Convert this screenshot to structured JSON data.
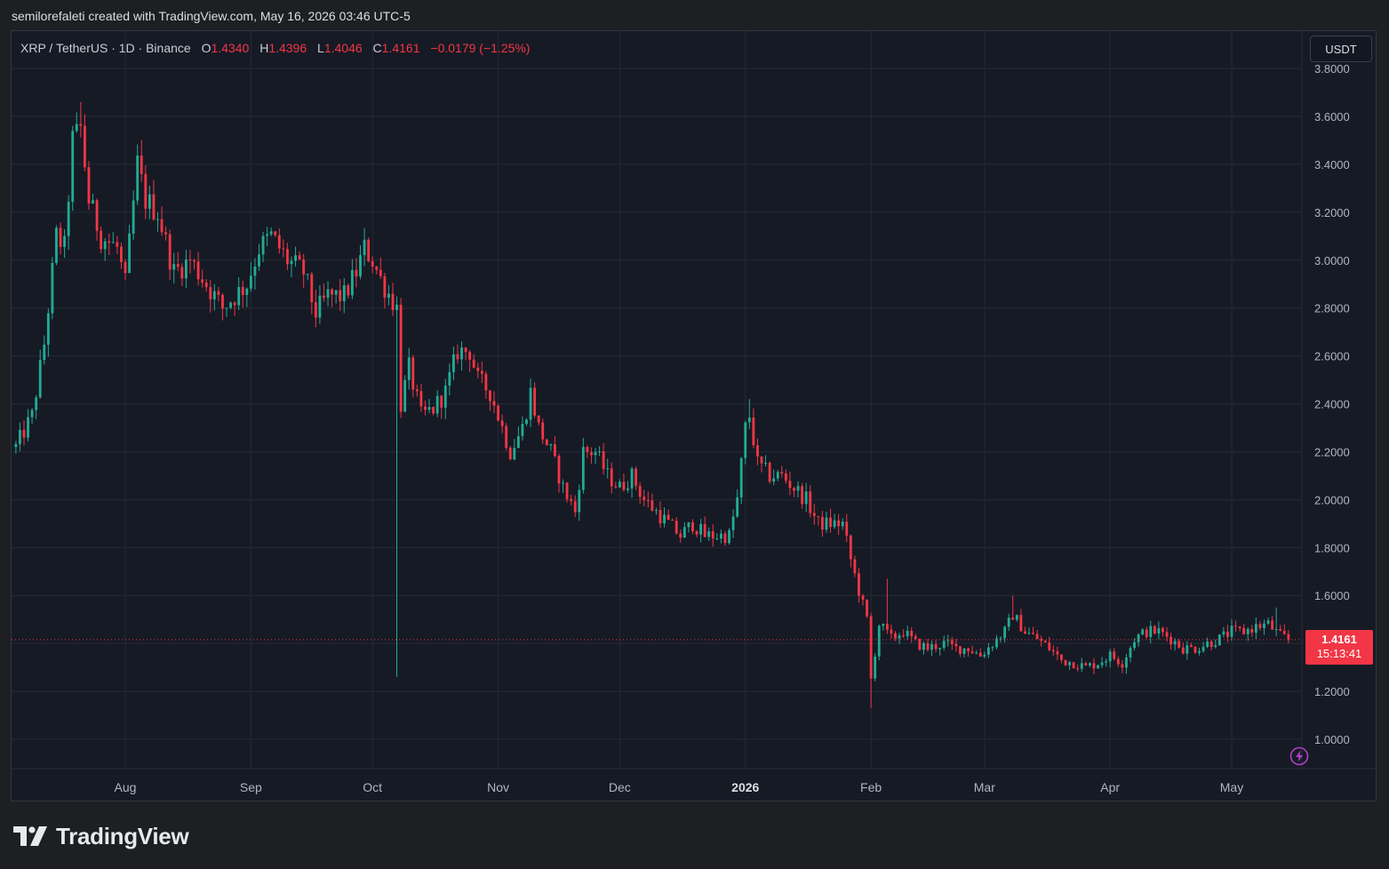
{
  "header": {
    "text": "semilorefaleti created with TradingView.com, May 16, 2026 03:46 UTC-5"
  },
  "legend": {
    "symbol": "XRP / TetherUS · 1D · Binance",
    "open_label": "O",
    "open": "1.4340",
    "high_label": "H",
    "high": "1.4396",
    "low_label": "L",
    "low": "1.4046",
    "close_label": "C",
    "close": "1.4161",
    "change": "−0.0179 (−1.25%)"
  },
  "currency": "USDT",
  "price_tag": {
    "price": "1.4161",
    "countdown": "15:13:41"
  },
  "logo": {
    "text": "TradingView"
  },
  "colors": {
    "up": "#22ab94",
    "down": "#f23645",
    "background": "#161a25",
    "grid": "#262a35",
    "axis_text": "#b2b5be"
  },
  "icons": [
    "lightning-icon",
    "tradingview-logo-icon"
  ],
  "chart_data": {
    "type": "candlestick",
    "title": "XRP / TetherUS · 1D · Binance",
    "xlabel": "",
    "ylabel": "",
    "ylim": [
      0.88,
      3.86
    ],
    "y_ticks": [
      "1.0000",
      "1.2000",
      "1.4000",
      "1.6000",
      "1.8000",
      "2.0000",
      "2.2000",
      "2.4000",
      "2.6000",
      "2.8000",
      "3.0000",
      "3.2000",
      "3.4000",
      "3.6000",
      "3.8000"
    ],
    "x_ticks": [
      {
        "label": "Aug",
        "day": 0,
        "bold": false
      },
      {
        "label": "Sep",
        "day": 31,
        "bold": false
      },
      {
        "label": "Oct",
        "day": 61,
        "bold": false
      },
      {
        "label": "Nov",
        "day": 92,
        "bold": false
      },
      {
        "label": "Dec",
        "day": 122,
        "bold": false
      },
      {
        "label": "2026",
        "day": 153,
        "bold": true
      },
      {
        "label": "Feb",
        "day": 184,
        "bold": false
      },
      {
        "label": "Mar",
        "day": 212,
        "bold": false
      },
      {
        "label": "Apr",
        "day": 243,
        "bold": false
      },
      {
        "label": "May",
        "day": 273,
        "bold": false
      }
    ],
    "grid": true,
    "first_day": -27,
    "last_day": 287,
    "last_close": 1.4161,
    "anchors": [
      [
        -27,
        2.22
      ],
      [
        -23,
        2.35
      ],
      [
        -20,
        2.65
      ],
      [
        -17,
        3.1
      ],
      [
        -15,
        3.05
      ],
      [
        -13,
        3.5
      ],
      [
        -11,
        3.55
      ],
      [
        -9,
        3.25
      ],
      [
        -6,
        3.1
      ],
      [
        -2,
        3.05
      ],
      [
        0,
        2.9
      ],
      [
        3,
        3.4
      ],
      [
        5,
        3.25
      ],
      [
        8,
        3.2
      ],
      [
        12,
        2.95
      ],
      [
        16,
        3.0
      ],
      [
        20,
        2.9
      ],
      [
        24,
        2.8
      ],
      [
        27,
        2.85
      ],
      [
        30,
        2.9
      ],
      [
        33,
        3.05
      ],
      [
        36,
        3.1
      ],
      [
        40,
        3.0
      ],
      [
        44,
        2.95
      ],
      [
        47,
        2.78
      ],
      [
        50,
        2.85
      ],
      [
        54,
        2.85
      ],
      [
        57,
        2.95
      ],
      [
        59,
        3.05
      ],
      [
        61,
        3.0
      ],
      [
        63,
        2.92
      ],
      [
        67,
        2.8
      ],
      [
        68,
        2.4
      ],
      [
        70,
        2.55
      ],
      [
        73,
        2.35
      ],
      [
        76,
        2.38
      ],
      [
        79,
        2.45
      ],
      [
        82,
        2.62
      ],
      [
        85,
        2.62
      ],
      [
        87,
        2.5
      ],
      [
        90,
        2.45
      ],
      [
        92,
        2.35
      ],
      [
        95,
        2.2
      ],
      [
        98,
        2.3
      ],
      [
        100,
        2.45
      ],
      [
        102,
        2.3
      ],
      [
        105,
        2.2
      ],
      [
        108,
        2.05
      ],
      [
        111,
        1.95
      ],
      [
        113,
        2.2
      ],
      [
        116,
        2.2
      ],
      [
        119,
        2.1
      ],
      [
        122,
        2.05
      ],
      [
        125,
        2.1
      ],
      [
        128,
        2.0
      ],
      [
        131,
        1.95
      ],
      [
        134,
        1.9
      ],
      [
        137,
        1.85
      ],
      [
        140,
        1.9
      ],
      [
        143,
        1.85
      ],
      [
        146,
        1.85
      ],
      [
        149,
        1.85
      ],
      [
        151,
        2.0
      ],
      [
        153,
        2.3
      ],
      [
        154,
        2.35
      ],
      [
        156,
        2.15
      ],
      [
        159,
        2.1
      ],
      [
        162,
        2.1
      ],
      [
        165,
        2.05
      ],
      [
        168,
        2.0
      ],
      [
        171,
        1.9
      ],
      [
        174,
        1.9
      ],
      [
        177,
        1.9
      ],
      [
        179,
        1.75
      ],
      [
        181,
        1.62
      ],
      [
        183,
        1.5
      ],
      [
        184,
        1.25
      ],
      [
        186,
        1.48
      ],
      [
        189,
        1.42
      ],
      [
        192,
        1.45
      ],
      [
        195,
        1.4
      ],
      [
        198,
        1.38
      ],
      [
        202,
        1.4
      ],
      [
        205,
        1.38
      ],
      [
        208,
        1.38
      ],
      [
        211,
        1.35
      ],
      [
        214,
        1.4
      ],
      [
        217,
        1.45
      ],
      [
        219,
        1.52
      ],
      [
        222,
        1.45
      ],
      [
        225,
        1.42
      ],
      [
        228,
        1.38
      ],
      [
        231,
        1.33
      ],
      [
        234,
        1.32
      ],
      [
        237,
        1.3
      ],
      [
        240,
        1.32
      ],
      [
        243,
        1.35
      ],
      [
        246,
        1.32
      ],
      [
        249,
        1.42
      ],
      [
        252,
        1.45
      ],
      [
        255,
        1.45
      ],
      [
        258,
        1.42
      ],
      [
        261,
        1.38
      ],
      [
        264,
        1.38
      ],
      [
        267,
        1.4
      ],
      [
        270,
        1.42
      ],
      [
        273,
        1.45
      ],
      [
        276,
        1.45
      ],
      [
        279,
        1.47
      ],
      [
        282,
        1.48
      ],
      [
        285,
        1.43
      ],
      [
        287,
        1.4161
      ]
    ],
    "spikes": [
      {
        "day": 67,
        "low": 1.26
      },
      {
        "day": 184,
        "low": 1.13
      },
      {
        "day": 188,
        "high": 1.67
      },
      {
        "day": -11,
        "high": 3.66
      },
      {
        "day": 154,
        "high": 2.42
      },
      {
        "day": 219,
        "high": 1.6
      },
      {
        "day": 284,
        "high": 1.55
      }
    ]
  }
}
